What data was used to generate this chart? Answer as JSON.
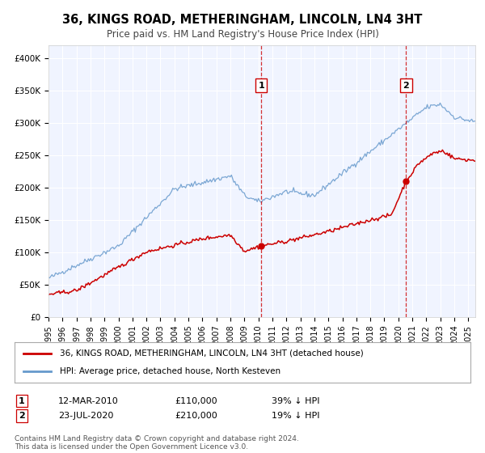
{
  "title": "36, KINGS ROAD, METHERINGHAM, LINCOLN, LN4 3HT",
  "subtitle": "Price paid vs. HM Land Registry's House Price Index (HPI)",
  "title_fontsize": 11,
  "subtitle_fontsize": 9,
  "bg_color": "#ffffff",
  "plot_bg_color": "#f0f4ff",
  "grid_color": "#ffffff",
  "ylim": [
    0,
    420000
  ],
  "xlim_start": 1995.0,
  "xlim_end": 2025.5,
  "yticks": [
    0,
    50000,
    100000,
    150000,
    200000,
    250000,
    300000,
    350000,
    400000
  ],
  "ytick_labels": [
    "£0",
    "£50K",
    "£100K",
    "£150K",
    "£200K",
    "£250K",
    "£300K",
    "£350K",
    "£400K"
  ],
  "red_line_color": "#cc0000",
  "blue_line_color": "#6699cc",
  "event1_x": 2010.2,
  "event1_y_red": 110000,
  "event1_label": "1",
  "event1_date": "12-MAR-2010",
  "event1_price": "£110,000",
  "event1_pct": "39% ↓ HPI",
  "event2_x": 2020.55,
  "event2_y_red": 210000,
  "event2_label": "2",
  "event2_date": "23-JUL-2020",
  "event2_price": "£210,000",
  "event2_pct": "19% ↓ HPI",
  "legend_label_red": "36, KINGS ROAD, METHERINGHAM, LINCOLN, LN4 3HT (detached house)",
  "legend_label_blue": "HPI: Average price, detached house, North Kesteven",
  "footer1": "Contains HM Land Registry data © Crown copyright and database right 2024.",
  "footer2": "This data is licensed under the Open Government Licence v3.0."
}
